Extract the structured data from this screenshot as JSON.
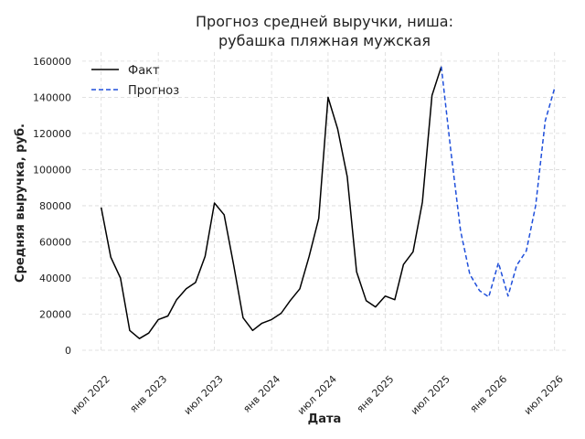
{
  "chart_data": {
    "type": "line",
    "title_line1": "Прогноз средней выручки, ниша:",
    "title_line2": "рубашка пляжная мужская",
    "xlabel": "Дата",
    "ylabel": "Средняя выручка, руб.",
    "ylim": [
      0,
      165000
    ],
    "xlim": [
      "2022-05-01",
      "2026-08-15"
    ],
    "grid": true,
    "legend_position": "top-left",
    "y_ticks": [
      0,
      20000,
      40000,
      60000,
      80000,
      100000,
      120000,
      140000,
      160000
    ],
    "y_tick_labels": [
      "0",
      "20000",
      "40000",
      "60000",
      "80000",
      "100000",
      "120000",
      "140000",
      "160000"
    ],
    "x_ticks": [
      "2022-07-01",
      "2023-01-01",
      "2023-07-01",
      "2024-01-01",
      "2024-07-01",
      "2025-01-01",
      "2025-07-01",
      "2026-01-01",
      "2026-07-01"
    ],
    "x_tick_labels": [
      "июл 2022",
      "янв 2023",
      "июл 2023",
      "янв 2024",
      "июл 2024",
      "янв 2025",
      "июл 2025",
      "янв 2026",
      "июл 2026"
    ],
    "series": [
      {
        "name": "Факт",
        "color": "#000000",
        "style": "solid",
        "points": [
          [
            "2022-07-01",
            79000
          ],
          [
            "2022-08-01",
            51500
          ],
          [
            "2022-09-01",
            40000
          ],
          [
            "2022-10-01",
            11000
          ],
          [
            "2022-11-01",
            6500
          ],
          [
            "2022-12-01",
            9500
          ],
          [
            "2023-01-01",
            17000
          ],
          [
            "2023-02-01",
            19000
          ],
          [
            "2023-03-01",
            28000
          ],
          [
            "2023-04-01",
            34000
          ],
          [
            "2023-05-01",
            37500
          ],
          [
            "2023-06-01",
            52000
          ],
          [
            "2023-07-01",
            81500
          ],
          [
            "2023-08-01",
            75000
          ],
          [
            "2023-09-01",
            47000
          ],
          [
            "2023-10-01",
            18000
          ],
          [
            "2023-11-01",
            11000
          ],
          [
            "2023-12-01",
            15000
          ],
          [
            "2024-01-01",
            17000
          ],
          [
            "2024-02-01",
            20500
          ],
          [
            "2024-03-01",
            27500
          ],
          [
            "2024-04-01",
            34000
          ],
          [
            "2024-05-01",
            52000
          ],
          [
            "2024-06-01",
            73000
          ],
          [
            "2024-07-01",
            140000
          ],
          [
            "2024-08-01",
            122500
          ],
          [
            "2024-09-01",
            96000
          ],
          [
            "2024-10-01",
            43500
          ],
          [
            "2024-11-01",
            27500
          ],
          [
            "2024-12-01",
            24000
          ],
          [
            "2025-01-01",
            30000
          ],
          [
            "2025-02-01",
            28000
          ],
          [
            "2025-03-01",
            47500
          ],
          [
            "2025-04-01",
            54500
          ],
          [
            "2025-05-01",
            82000
          ],
          [
            "2025-06-01",
            141000
          ],
          [
            "2025-07-01",
            157000
          ]
        ]
      },
      {
        "name": "Прогноз",
        "color": "#1f4fdb",
        "style": "dashed",
        "points": [
          [
            "2025-07-01",
            157000
          ],
          [
            "2025-08-01",
            110000
          ],
          [
            "2025-09-01",
            66000
          ],
          [
            "2025-10-01",
            42000
          ],
          [
            "2025-11-01",
            33000
          ],
          [
            "2025-12-01",
            29500
          ],
          [
            "2026-01-01",
            48500
          ],
          [
            "2026-02-01",
            30000
          ],
          [
            "2026-03-01",
            47000
          ],
          [
            "2026-04-01",
            55000
          ],
          [
            "2026-05-01",
            80000
          ],
          [
            "2026-06-01",
            127000
          ],
          [
            "2026-07-01",
            145000
          ]
        ]
      }
    ]
  }
}
